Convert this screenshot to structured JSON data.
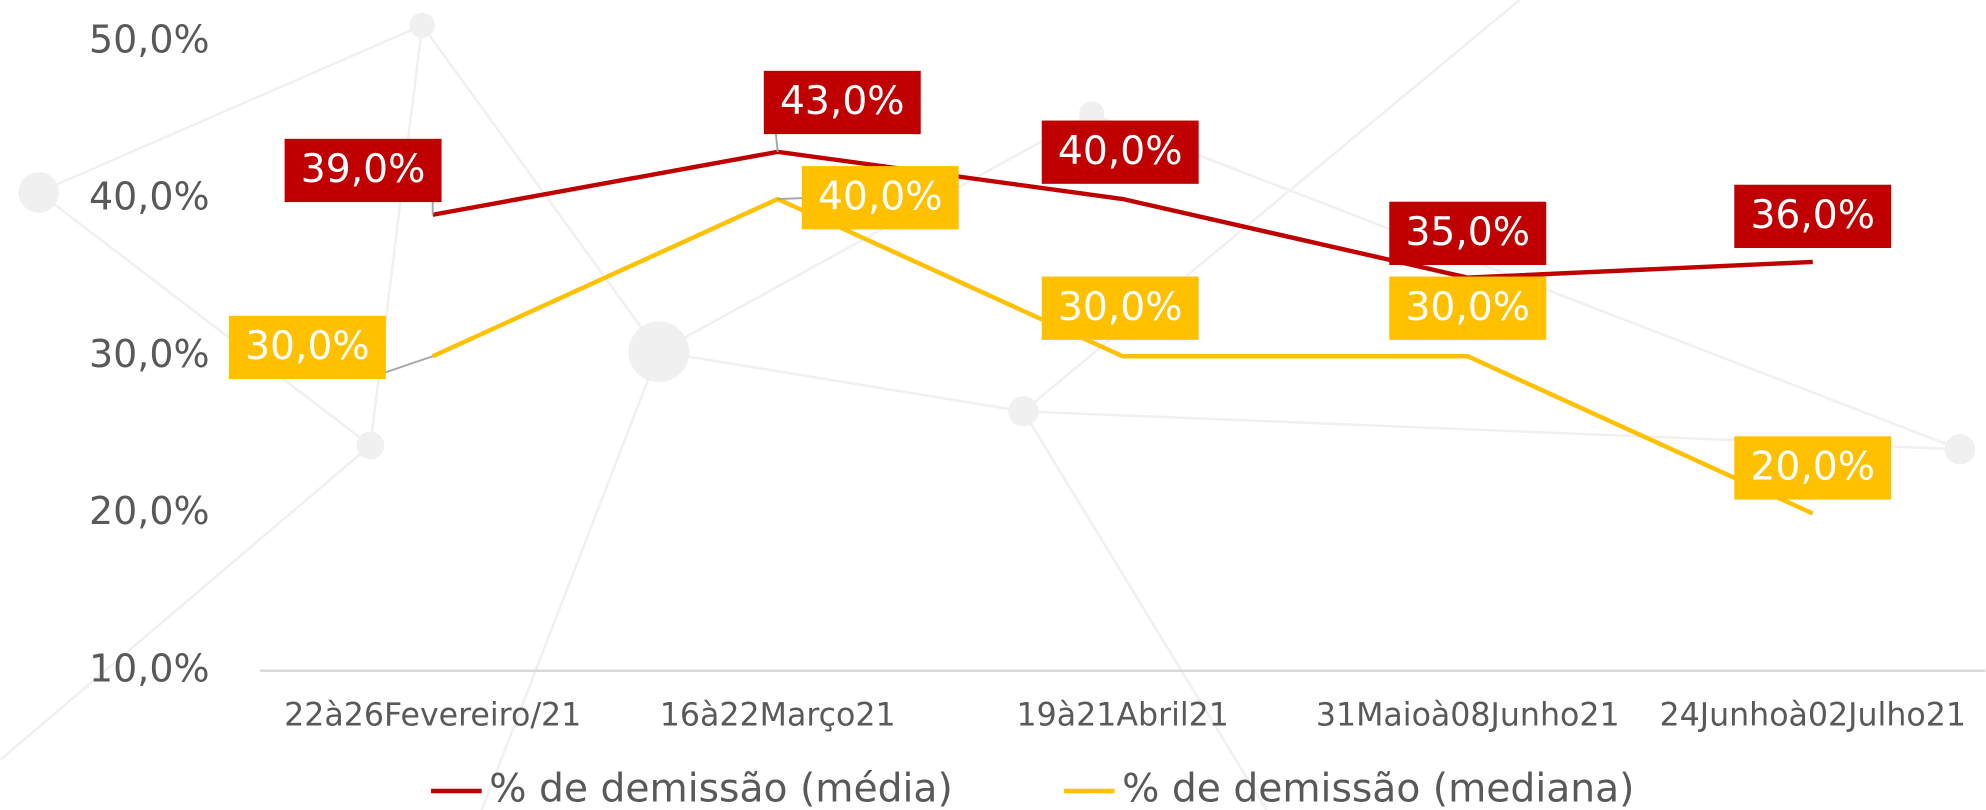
{
  "chart_data": {
    "type": "line",
    "categories": [
      "22à26Fevereiro/21",
      "16à22Março21",
      "19à21Abril21",
      "31Maioà08Junho21",
      "24Junhoà02Julho21"
    ],
    "series": [
      {
        "name": "% de demissão (média)",
        "color": "#c00000",
        "values": [
          39,
          43,
          40,
          35,
          36
        ],
        "value_labels": [
          "39,0%",
          "43,0%",
          "40,0%",
          "35,0%",
          "36,0%"
        ]
      },
      {
        "name": "% de demissão (mediana)",
        "color": "#ffc000",
        "values": [
          30,
          40,
          30,
          30,
          20
        ],
        "value_labels": [
          "30,0%",
          "40,0%",
          "30,0%",
          "30,0%",
          "20,0%"
        ]
      }
    ],
    "ylim": [
      10,
      50
    ],
    "yticks": [
      {
        "value": 10,
        "label": "10,0%"
      },
      {
        "value": 20,
        "label": "20,0%"
      },
      {
        "value": 30,
        "label": "30,0%"
      },
      {
        "value": 40,
        "label": "40,0%"
      },
      {
        "value": 50,
        "label": "50,0%"
      }
    ],
    "grid": false,
    "legend": "bottom"
  }
}
